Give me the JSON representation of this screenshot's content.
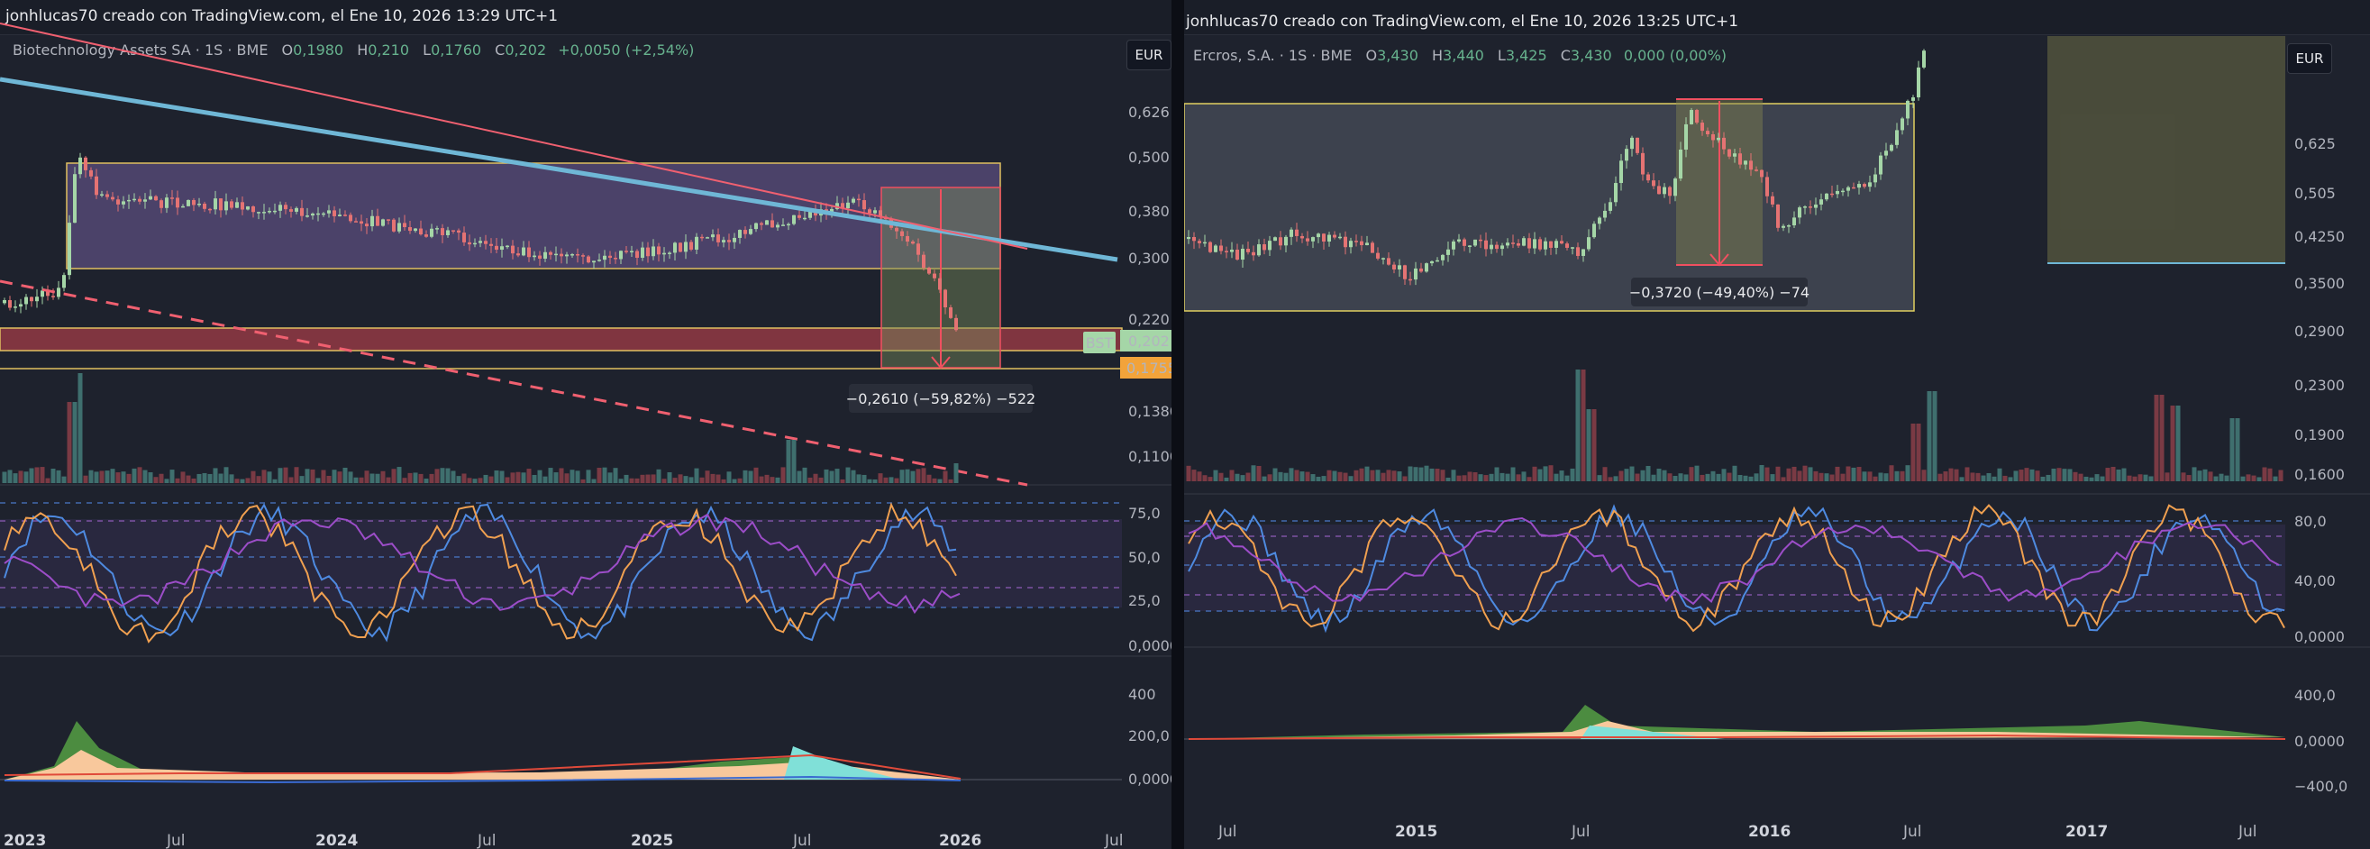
{
  "left": {
    "credit": "jonhlucas70 creado con TradingView.com, el Ene 10, 2026 13:29 UTC+1",
    "legend": {
      "name": "Biotechnology Assets SA · 1S · BME",
      "o_key": "O",
      "o": "0,1980",
      "h_key": "H",
      "h": "0,210",
      "l_key": "L",
      "l": "0,1760",
      "c_key": "C",
      "c": "0,202",
      "change": "+0,0050 (+2,54%)"
    },
    "currency_button": "EUR",
    "price_axis_ticks": [
      "0,626",
      "0,500",
      "0,380",
      "0,300",
      "0,220",
      "0,1380",
      "0,1100"
    ],
    "price_tag_symbol": "BST",
    "price_tag_value": "0,202",
    "level_tag_value": "0,1755",
    "measure_label": "−0,2610 (−59,82%) −522",
    "stoch_ticks": [
      "75,0",
      "50,0",
      "25,0",
      "0,0000"
    ],
    "lower_ticks": [
      "400",
      "200,0",
      "0,0000"
    ],
    "time_labels": [
      {
        "text": "2023",
        "bold": true
      },
      {
        "text": "Jul",
        "bold": false
      },
      {
        "text": "2024",
        "bold": true
      },
      {
        "text": "Jul",
        "bold": false
      },
      {
        "text": "2025",
        "bold": true
      },
      {
        "text": "Jul",
        "bold": false
      },
      {
        "text": "2026",
        "bold": true
      },
      {
        "text": "Jul",
        "bold": false
      }
    ],
    "colors": {
      "up": "#a5d6a7",
      "down": "#e57373",
      "trendline": "#6fb7d6",
      "resistance": "#f06060",
      "box": "#b39ddb"
    }
  },
  "right": {
    "credit": "jonhlucas70 creado con TradingView.com, el Ene 10, 2026 13:25 UTC+1",
    "legend": {
      "name": "Ercros, S.A. · 1S · BME",
      "o_key": "O",
      "o": "3,430",
      "h_key": "H",
      "h": "3,440",
      "l_key": "L",
      "l": "3,425",
      "c_key": "C",
      "c": "3,430",
      "change": "0,000 (0,00%)"
    },
    "currency_button": "EUR",
    "price_axis_ticks": [
      "0,625",
      "0,505",
      "0,4250",
      "0,3500",
      "0,2900",
      "0,2300",
      "0,1900",
      "0,1600"
    ],
    "measure_label": "−0,3720 (−49,40%) −74",
    "stoch_ticks": [
      "80,0",
      "40,00",
      "0,0000"
    ],
    "lower_ticks": [
      "400,0",
      "0,0000",
      "−400,0"
    ],
    "time_labels": [
      {
        "text": "Jul",
        "bold": false
      },
      {
        "text": "2015",
        "bold": true
      },
      {
        "text": "Jul",
        "bold": false
      },
      {
        "text": "2016",
        "bold": true
      },
      {
        "text": "Jul",
        "bold": false
      },
      {
        "text": "2017",
        "bold": true
      },
      {
        "text": "Jul",
        "bold": false
      }
    ]
  }
}
